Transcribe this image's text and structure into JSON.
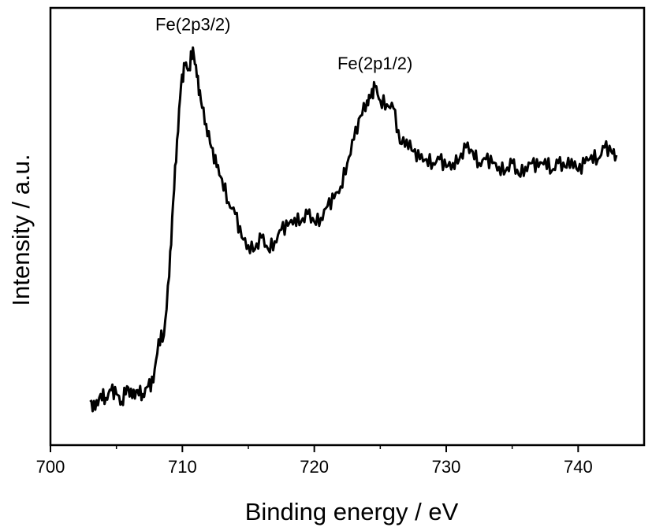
{
  "chart_data": {
    "type": "line",
    "xlabel": "Binding energy / eV",
    "ylabel": "Intensity / a.u.",
    "xlim": [
      700,
      745
    ],
    "ylim": [
      0,
      1
    ],
    "xticks": [
      "700",
      "710",
      "720",
      "730",
      "740"
    ],
    "yticks_shown": false,
    "grid": false,
    "legend": "none",
    "annotations": [
      {
        "text": "Fe(2p3/2)",
        "x": 710.8,
        "y": 0.955
      },
      {
        "text": "Fe(2p1/2)",
        "x": 724.6,
        "y": 0.855
      }
    ],
    "series": [
      {
        "color": "#000000",
        "x": [
          703.0,
          703.4,
          703.8,
          704.2,
          704.6,
          705.0,
          705.4,
          705.8,
          706.2,
          706.6,
          707.0,
          707.4,
          707.8,
          708.2,
          708.6,
          709.0,
          709.3,
          709.6,
          709.9,
          710.2,
          710.5,
          710.8,
          711.1,
          711.4,
          711.8,
          712.2,
          712.6,
          713.0,
          713.5,
          714.0,
          714.5,
          715.0,
          715.5,
          716.0,
          716.5,
          717.0,
          717.5,
          718.0,
          718.5,
          719.0,
          719.5,
          720.0,
          720.5,
          721.0,
          721.5,
          722.0,
          722.5,
          723.0,
          723.5,
          724.0,
          724.3,
          724.6,
          725.0,
          725.5,
          726.0,
          726.5,
          727.0,
          727.5,
          728.0,
          728.5,
          729.0,
          729.5,
          730.0,
          730.5,
          731.0,
          731.5,
          732.0,
          732.5,
          733.0,
          733.5,
          734.0,
          734.5,
          735.0,
          735.5,
          736.0,
          736.5,
          737.0,
          737.5,
          738.0,
          738.5,
          739.0,
          739.5,
          740.0,
          740.5,
          741.0,
          741.5,
          742.0,
          742.5,
          742.9
        ],
        "y": [
          0.05,
          0.03,
          0.07,
          0.06,
          0.08,
          0.07,
          0.05,
          0.09,
          0.06,
          0.08,
          0.07,
          0.09,
          0.1,
          0.21,
          0.22,
          0.37,
          0.56,
          0.72,
          0.86,
          0.91,
          0.9,
          0.955,
          0.88,
          0.82,
          0.76,
          0.7,
          0.65,
          0.62,
          0.56,
          0.53,
          0.47,
          0.45,
          0.44,
          0.47,
          0.44,
          0.46,
          0.49,
          0.5,
          0.52,
          0.51,
          0.53,
          0.51,
          0.52,
          0.55,
          0.57,
          0.6,
          0.66,
          0.72,
          0.78,
          0.82,
          0.83,
          0.855,
          0.82,
          0.81,
          0.8,
          0.71,
          0.72,
          0.69,
          0.67,
          0.67,
          0.66,
          0.67,
          0.65,
          0.66,
          0.67,
          0.7,
          0.69,
          0.66,
          0.67,
          0.66,
          0.65,
          0.64,
          0.66,
          0.63,
          0.65,
          0.66,
          0.65,
          0.67,
          0.64,
          0.66,
          0.65,
          0.67,
          0.64,
          0.66,
          0.68,
          0.67,
          0.7,
          0.69,
          0.68
        ]
      }
    ]
  }
}
